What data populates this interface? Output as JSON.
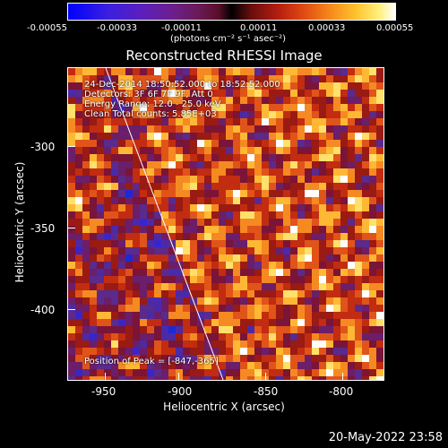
{
  "colorbar": {
    "ticks": [
      "-0.00055",
      "-0.00033",
      "-0.00011",
      "0.00011",
      "0.00033",
      "0.00055"
    ],
    "units": "(photons cm⁻² s⁻¹ asec⁻²)"
  },
  "title": "Reconstructed RHESSI Image",
  "annotations": {
    "time": "24-Dec-2014 18:50:52.000 to 18:52:52.000",
    "detectors": "Detectors: 3F 6F 7F 9F, Att 0",
    "energy": "Energy Range: 12.0 - 25.0 keV",
    "algorithm": "Clean     Total counts: 5.85E+03",
    "peak": "Position of Peak = [-847,-365]"
  },
  "axes": {
    "xlabel": "Heliocentric X (arcsec)",
    "ylabel": "Heliocentric Y (arcsec)",
    "xticks": [
      "-950",
      "-900",
      "-850",
      "-800"
    ],
    "yticks": [
      "-300",
      "-350",
      "-400"
    ]
  },
  "timestamp": "20-May-2022 23:58"
}
